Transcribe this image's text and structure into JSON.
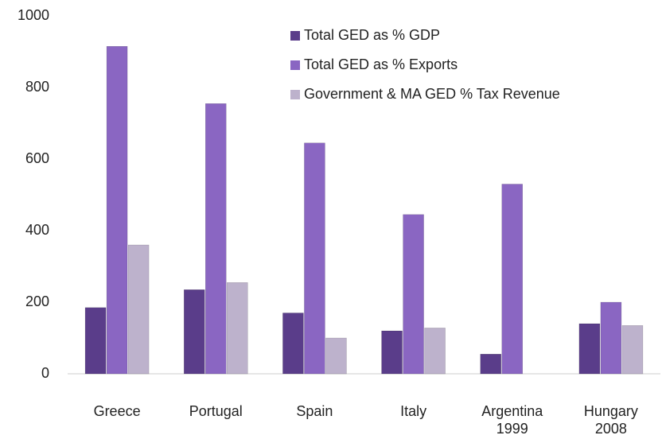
{
  "chart_data": {
    "type": "bar",
    "categories": [
      "Greece",
      "Portugal",
      "Spain",
      "Italy",
      "Argentina\n1999",
      "Hungary\n2008"
    ],
    "series": [
      {
        "name": "Total GED as % GDP",
        "color": "#5a3d8a",
        "values": [
          185,
          235,
          170,
          120,
          55,
          140
        ]
      },
      {
        "name": "Total GED as % Exports",
        "color": "#8a66c2",
        "values": [
          915,
          755,
          645,
          445,
          530,
          200
        ]
      },
      {
        "name": "Government & MA GED % Tax Revenue",
        "color": "#bdb2cc",
        "values": [
          360,
          255,
          100,
          128,
          null,
          135
        ]
      }
    ],
    "ylim": [
      0,
      1000
    ],
    "yticks": [
      0,
      200,
      400,
      600,
      800,
      1000
    ],
    "grid": false
  }
}
